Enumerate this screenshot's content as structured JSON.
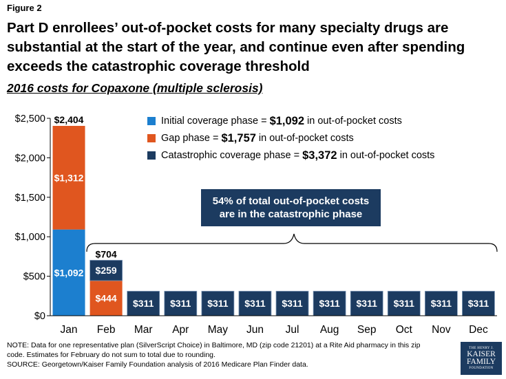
{
  "figure_label": "Figure 2",
  "title": "Part D enrollees’ out-of-pocket costs for many specialty drugs are substantial at the start of the year, and continue even after spending exceeds the catastrophic coverage threshold",
  "subtitle": "2016 costs for Copaxone (multiple sclerosis)",
  "colors": {
    "initial": "#1c7fcf",
    "gap": "#e0561f",
    "catastrophic": "#1c3b60"
  },
  "legend": [
    {
      "text_before": "Initial coverage phase =",
      "value": "$1,092",
      "text_after": "in out-of-pocket costs",
      "color_key": "initial"
    },
    {
      "text_before": "Gap phase =",
      "value": "$1,757",
      "text_after": "in out-of-pocket costs",
      "color_key": "gap"
    },
    {
      "text_before": "Catastrophic coverage phase =",
      "value": "$3,372",
      "text_after": "in out-of-pocket costs",
      "color_key": "catastrophic"
    }
  ],
  "callout": {
    "line1": "54% of total out-of-pocket costs",
    "line2": "are in the catastrophic phase"
  },
  "chart_data": {
    "type": "bar",
    "stacked": true,
    "categories": [
      "Jan",
      "Feb",
      "Mar",
      "Apr",
      "May",
      "Jun",
      "Jul",
      "Aug",
      "Sep",
      "Oct",
      "Nov",
      "Dec"
    ],
    "series": [
      {
        "name": "Initial coverage phase",
        "color_key": "initial",
        "values": [
          1092,
          0,
          0,
          0,
          0,
          0,
          0,
          0,
          0,
          0,
          0,
          0
        ],
        "labels": [
          "$1,092",
          "",
          "",
          "",
          "",
          "",
          "",
          "",
          "",
          "",
          "",
          ""
        ]
      },
      {
        "name": "Gap phase",
        "color_key": "gap",
        "values": [
          1312,
          444,
          0,
          0,
          0,
          0,
          0,
          0,
          0,
          0,
          0,
          0
        ],
        "labels": [
          "$1,312",
          "$444",
          "",
          "",
          "",
          "",
          "",
          "",
          "",
          "",
          "",
          ""
        ]
      },
      {
        "name": "Catastrophic coverage phase",
        "color_key": "catastrophic",
        "values": [
          0,
          259,
          311,
          311,
          311,
          311,
          311,
          311,
          311,
          311,
          311,
          311
        ],
        "labels": [
          "",
          "$259",
          "$311",
          "$311",
          "$311",
          "$311",
          "$311",
          "$311",
          "$311",
          "$311",
          "$311",
          "$311"
        ]
      }
    ],
    "totals": [
      "$2,404",
      "$704",
      "",
      "",
      "",
      "",
      "",
      "",
      "",
      "",
      "",
      ""
    ],
    "ylim": [
      0,
      2500
    ],
    "yticks": [
      0,
      500,
      1000,
      1500,
      2000,
      2500
    ],
    "ytick_labels": [
      "$0",
      "$500",
      "$1,000",
      "$1,500",
      "$2,000",
      "$2,500"
    ],
    "title": "2016 costs for Copaxone (multiple sclerosis)",
    "xlabel": "",
    "ylabel": ""
  },
  "footnote": {
    "line1": "NOTE: Data for one representative plan (SilverScript Choice) in Baltimore, MD (zip code 21201) at a Rite Aid pharmacy in this zip",
    "line2": "code. Estimates for February do not sum to total due to rounding.",
    "line3": "SOURCE: Georgetown/Kaiser Family Foundation analysis of 2016 Medicare Plan Finder data."
  },
  "logo": {
    "line1": "THE HENRY J.",
    "line2": "KAISER",
    "line3": "FAMILY",
    "line4": "FOUNDATION"
  }
}
